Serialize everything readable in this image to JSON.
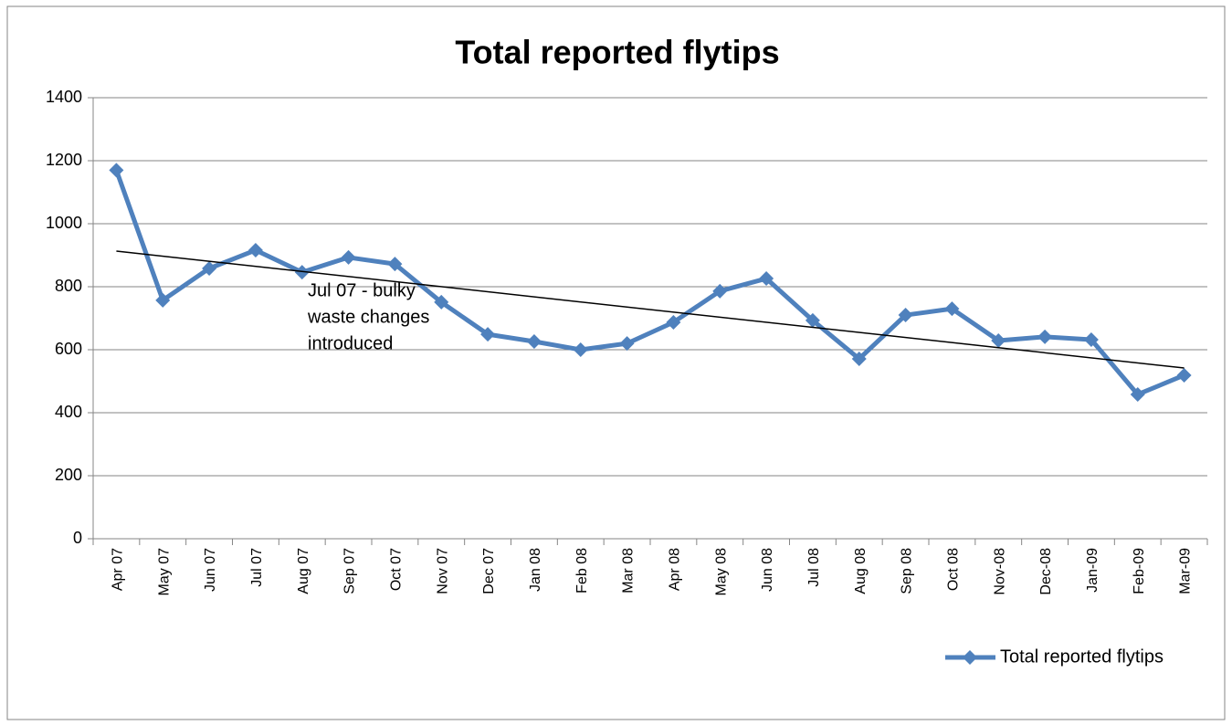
{
  "chart_data": {
    "type": "line",
    "title": "Total reported flytips",
    "categories": [
      "Apr 07",
      "May 07",
      "Jun 07",
      "Jul 07",
      "Aug 07",
      "Sep 07",
      "Oct 07",
      "Nov 07",
      "Dec 07",
      "Jan 08",
      "Feb 08",
      "Mar 08",
      "Apr 08",
      "May 08",
      "Jun 08",
      "Jul 08",
      "Aug 08",
      "Sep 08",
      "Oct 08",
      "Nov-08",
      "Dec-08",
      "Jan-09",
      "Feb-09",
      "Mar-09"
    ],
    "series": [
      {
        "name": "Total reported flytips",
        "color": "#4f81bd",
        "values": [
          1170,
          757,
          858,
          916,
          846,
          893,
          872,
          751,
          649,
          626,
          600,
          620,
          687,
          786,
          826,
          693,
          571,
          710,
          730,
          629,
          641,
          632,
          458,
          519
        ]
      }
    ],
    "trendline": [
      913,
      542
    ],
    "annotation": [
      "Jul 07 - bulky",
      "waste changes",
      "introduced"
    ],
    "ylim": [
      0,
      1400
    ],
    "yticks": [
      0,
      200,
      400,
      600,
      800,
      1000,
      1200,
      1400
    ],
    "grid": true,
    "legend": "bottom-right"
  }
}
